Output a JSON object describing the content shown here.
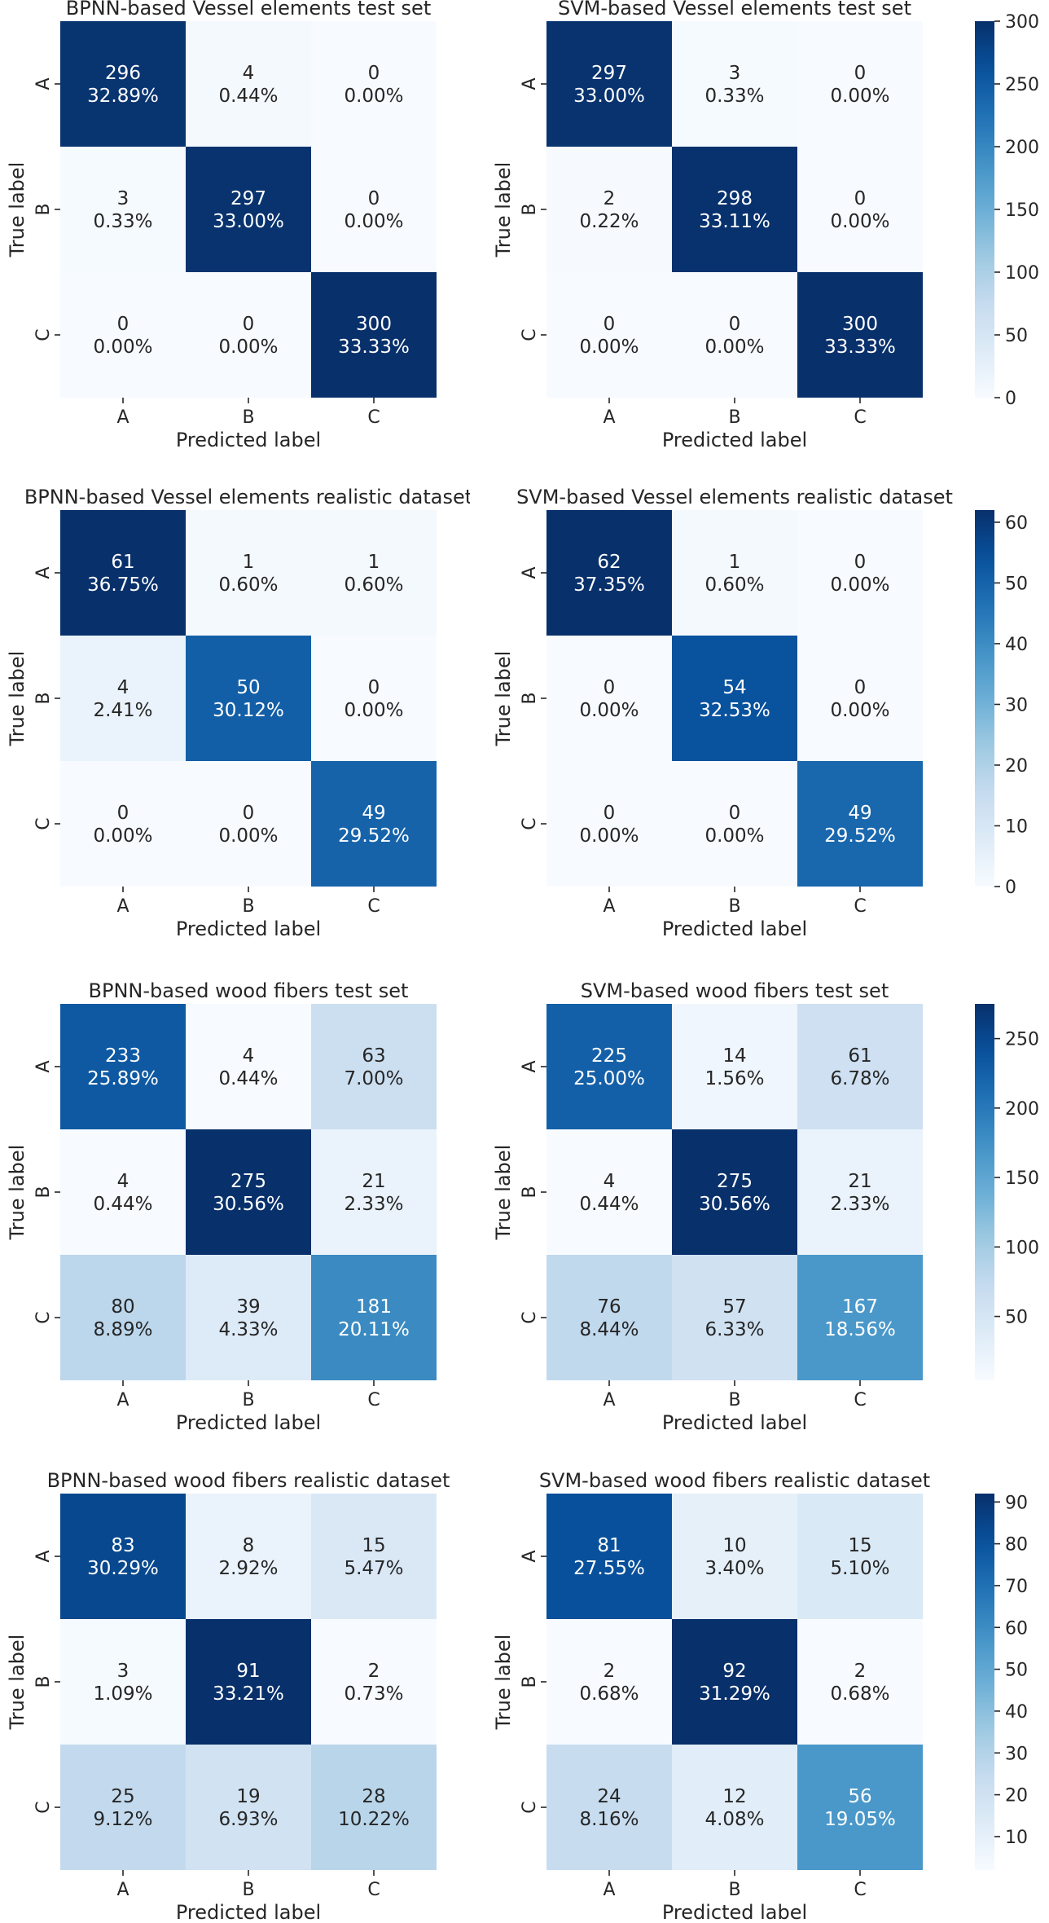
{
  "chart_data": [
    {
      "type": "heatmap",
      "title": "BPNN-based Vessel elements test set",
      "xlabel": "Predicted label",
      "ylabel": "True label",
      "x_categories": [
        "A",
        "B",
        "C"
      ],
      "y_categories": [
        "A",
        "B",
        "C"
      ],
      "counts": [
        [
          296,
          4,
          0
        ],
        [
          3,
          297,
          0
        ],
        [
          0,
          0,
          300
        ]
      ],
      "percents": [
        [
          "32.89%",
          "0.44%",
          "0.00%"
        ],
        [
          "0.33%",
          "33.00%",
          "0.00%"
        ],
        [
          "0.00%",
          "0.00%",
          "33.33%"
        ]
      ],
      "colorbar": null
    },
    {
      "type": "heatmap",
      "title": "SVM-based Vessel elements test set",
      "xlabel": "Predicted label",
      "ylabel": "True label",
      "x_categories": [
        "A",
        "B",
        "C"
      ],
      "y_categories": [
        "A",
        "B",
        "C"
      ],
      "counts": [
        [
          297,
          3,
          0
        ],
        [
          2,
          298,
          0
        ],
        [
          0,
          0,
          300
        ]
      ],
      "percents": [
        [
          "33.00%",
          "0.33%",
          "0.00%"
        ],
        [
          "0.22%",
          "33.11%",
          "0.00%"
        ],
        [
          "0.00%",
          "0.00%",
          "33.33%"
        ]
      ],
      "colorbar": {
        "range": [
          0,
          300
        ],
        "ticks": [
          "0",
          "50",
          "100",
          "150",
          "200",
          "250",
          "300"
        ]
      }
    },
    {
      "type": "heatmap",
      "title": "BPNN-based Vessel elements realistic dataset",
      "xlabel": "Predicted label",
      "ylabel": "True label",
      "x_categories": [
        "A",
        "B",
        "C"
      ],
      "y_categories": [
        "A",
        "B",
        "C"
      ],
      "counts": [
        [
          61,
          1,
          1
        ],
        [
          4,
          50,
          0
        ],
        [
          0,
          0,
          49
        ]
      ],
      "percents": [
        [
          "36.75%",
          "0.60%",
          "0.60%"
        ],
        [
          "2.41%",
          "30.12%",
          "0.00%"
        ],
        [
          "0.00%",
          "0.00%",
          "29.52%"
        ]
      ],
      "colorbar": null
    },
    {
      "type": "heatmap",
      "title": "SVM-based Vessel elements realistic dataset",
      "xlabel": "Predicted label",
      "ylabel": "True label",
      "x_categories": [
        "A",
        "B",
        "C"
      ],
      "y_categories": [
        "A",
        "B",
        "C"
      ],
      "counts": [
        [
          62,
          1,
          0
        ],
        [
          0,
          54,
          0
        ],
        [
          0,
          0,
          49
        ]
      ],
      "percents": [
        [
          "37.35%",
          "0.60%",
          "0.00%"
        ],
        [
          "0.00%",
          "32.53%",
          "0.00%"
        ],
        [
          "0.00%",
          "0.00%",
          "29.52%"
        ]
      ],
      "colorbar": {
        "range": [
          0,
          62
        ],
        "ticks": [
          "0",
          "10",
          "20",
          "30",
          "40",
          "50",
          "60"
        ]
      }
    },
    {
      "type": "heatmap",
      "title": "BPNN-based wood fibers test set",
      "xlabel": "Predicted label",
      "ylabel": "True label",
      "x_categories": [
        "A",
        "B",
        "C"
      ],
      "y_categories": [
        "A",
        "B",
        "C"
      ],
      "counts": [
        [
          233,
          4,
          63
        ],
        [
          4,
          275,
          21
        ],
        [
          80,
          39,
          181
        ]
      ],
      "percents": [
        [
          "25.89%",
          "0.44%",
          "7.00%"
        ],
        [
          "0.44%",
          "30.56%",
          "2.33%"
        ],
        [
          "8.89%",
          "4.33%",
          "20.11%"
        ]
      ],
      "colorbar": null
    },
    {
      "type": "heatmap",
      "title": "SVM-based wood fibers test set",
      "xlabel": "Predicted label",
      "ylabel": "True label",
      "x_categories": [
        "A",
        "B",
        "C"
      ],
      "y_categories": [
        "A",
        "B",
        "C"
      ],
      "counts": [
        [
          225,
          14,
          61
        ],
        [
          4,
          275,
          21
        ],
        [
          76,
          57,
          167
        ]
      ],
      "percents": [
        [
          "25.00%",
          "1.56%",
          "6.78%"
        ],
        [
          "0.44%",
          "30.56%",
          "2.33%"
        ],
        [
          "8.44%",
          "6.33%",
          "18.56%"
        ]
      ],
      "colorbar": {
        "range": [
          4,
          275
        ],
        "ticks": [
          "50",
          "100",
          "150",
          "200",
          "250"
        ]
      }
    },
    {
      "type": "heatmap",
      "title": "BPNN-based wood fibers realistic dataset",
      "xlabel": "Predicted label",
      "ylabel": "True label",
      "x_categories": [
        "A",
        "B",
        "C"
      ],
      "y_categories": [
        "A",
        "B",
        "C"
      ],
      "counts": [
        [
          83,
          8,
          15
        ],
        [
          3,
          91,
          2
        ],
        [
          25,
          19,
          28
        ]
      ],
      "percents": [
        [
          "30.29%",
          "2.92%",
          "5.47%"
        ],
        [
          "1.09%",
          "33.21%",
          "0.73%"
        ],
        [
          "9.12%",
          "6.93%",
          "10.22%"
        ]
      ],
      "colorbar": null
    },
    {
      "type": "heatmap",
      "title": "SVM-based wood fibers realistic dataset",
      "xlabel": "Predicted label",
      "ylabel": "True label",
      "x_categories": [
        "A",
        "B",
        "C"
      ],
      "y_categories": [
        "A",
        "B",
        "C"
      ],
      "counts": [
        [
          81,
          10,
          15
        ],
        [
          2,
          92,
          2
        ],
        [
          24,
          12,
          56
        ]
      ],
      "percents": [
        [
          "27.55%",
          "3.40%",
          "5.10%"
        ],
        [
          "0.68%",
          "31.29%",
          "0.68%"
        ],
        [
          "8.16%",
          "4.08%",
          "19.05%"
        ]
      ],
      "colorbar": {
        "range": [
          2,
          92
        ],
        "ticks": [
          "10",
          "20",
          "30",
          "40",
          "50",
          "60",
          "70",
          "80",
          "90"
        ]
      }
    }
  ],
  "colormap": {
    "name": "Blues",
    "stops": [
      "#f7fbff",
      "#deebf7",
      "#c6dbef",
      "#9ecae1",
      "#6baed6",
      "#4292c6",
      "#2171b5",
      "#08519c",
      "#08306b"
    ]
  },
  "text_colors": {
    "dark": "#262626",
    "light": "#ffffff"
  }
}
